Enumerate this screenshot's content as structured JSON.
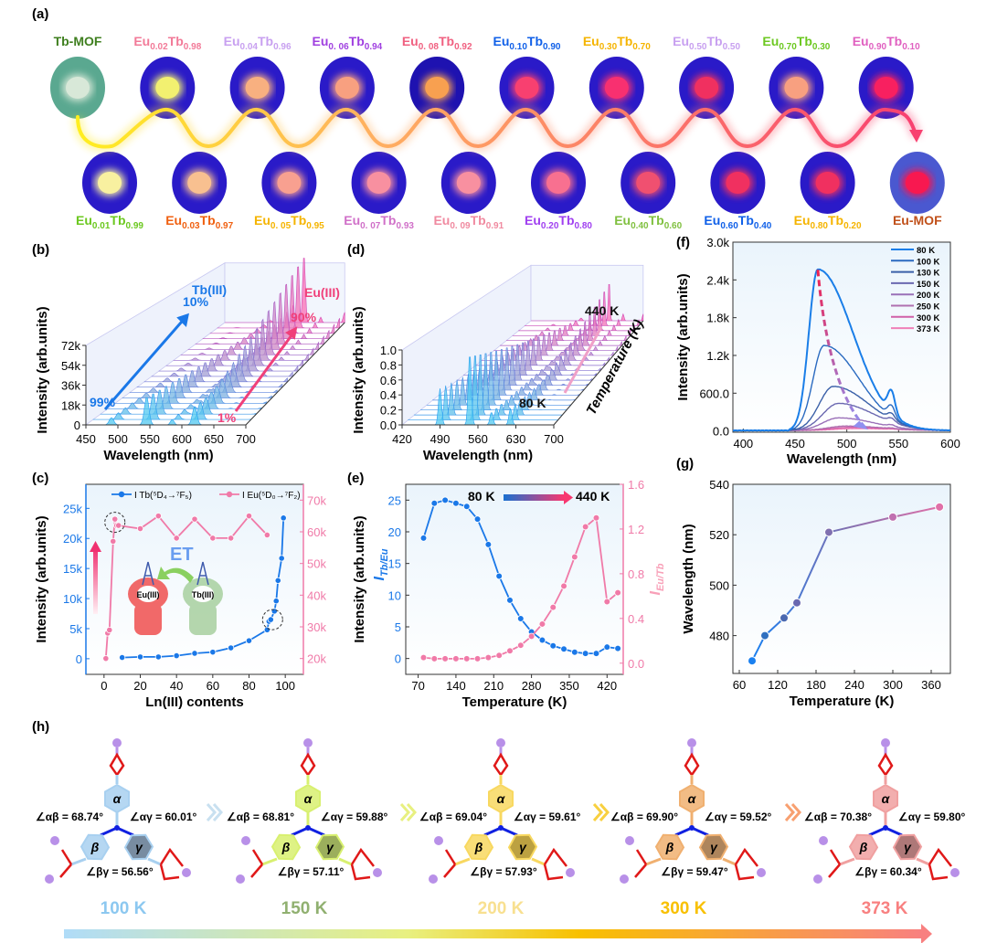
{
  "panel_labels": {
    "a": "(a)",
    "b": "(b)",
    "c": "(c)",
    "d": "(d)",
    "e": "(e)",
    "f": "(f)",
    "g": "(g)",
    "h": "(h)"
  },
  "panel_a": {
    "top": [
      {
        "parts": [
          "Tb-MOF"
        ],
        "color": "#3f7f1f",
        "photo_color": "#d8e8d8",
        "photo_bg": "#5aa890"
      },
      {
        "parts": [
          "Eu",
          "0.02",
          "Tb",
          "0.98"
        ],
        "color": "#f27a98",
        "photo_color": "#f2f070",
        "photo_bg": "#2a1ac8"
      },
      {
        "parts": [
          "Eu",
          "0.04",
          "Tb",
          "0.96"
        ],
        "color": "#c8a0f0",
        "photo_color": "#f8b080",
        "photo_bg": "#2a1ac8"
      },
      {
        "parts": [
          "Eu",
          "0. 06",
          "Tb",
          "0.94"
        ],
        "color": "#a040e0",
        "photo_color": "#f8a080",
        "photo_bg": "#2a1ac8"
      },
      {
        "parts": [
          "Eu",
          "0. 08",
          "Tb",
          "0.92"
        ],
        "color": "#f06080",
        "photo_color": "#f8a050",
        "photo_bg": "#1e12b0"
      },
      {
        "parts": [
          "Eu",
          "0.10",
          "Tb",
          "0.90"
        ],
        "color": "#1060e8",
        "photo_color": "#f84070",
        "photo_bg": "#2a1ac8"
      },
      {
        "parts": [
          "Eu",
          "0.30",
          "Tb",
          "0.70"
        ],
        "color": "#f5b400",
        "photo_color": "#f83070",
        "photo_bg": "#2a1ac8"
      },
      {
        "parts": [
          "Eu",
          "0.50",
          "Tb",
          "0.50"
        ],
        "color": "#c8a0f0",
        "photo_color": "#f03060",
        "photo_bg": "#2a1ac8"
      },
      {
        "parts": [
          "Eu",
          "0.70",
          "Tb",
          "0.30"
        ],
        "color": "#6cc820",
        "photo_color": "#f8a080",
        "photo_bg": "#2a1ac8"
      },
      {
        "parts": [
          "Eu",
          "0.90",
          "Tb",
          "0.10"
        ],
        "color": "#e060c0",
        "photo_color": "#f82060",
        "photo_bg": "#2a1ac8"
      }
    ],
    "bottom": [
      {
        "parts": [
          "Eu",
          "0.01",
          "Tb",
          "0.99"
        ],
        "color": "#6cc820",
        "photo_color": "#f8f0a0",
        "photo_bg": "#2a1ac8"
      },
      {
        "parts": [
          "Eu",
          "0.03",
          "Tb",
          "0.97"
        ],
        "color": "#f06010",
        "photo_color": "#f8c090",
        "photo_bg": "#2a1ac8"
      },
      {
        "parts": [
          "Eu",
          "0. 05",
          "Tb",
          "0.95"
        ],
        "color": "#f5b400",
        "photo_color": "#f8a090",
        "photo_bg": "#2a1ac8"
      },
      {
        "parts": [
          "Eu",
          "0. 07",
          "Tb",
          "0.93"
        ],
        "color": "#d070c8",
        "photo_color": "#f890a0",
        "photo_bg": "#2a1ac8"
      },
      {
        "parts": [
          "Eu",
          "0. 09",
          "Tb",
          "0.91"
        ],
        "color": "#f08aa0",
        "photo_color": "#f890a0",
        "photo_bg": "#2a1ac8"
      },
      {
        "parts": [
          "Eu",
          "0.20",
          "Tb",
          "0.80"
        ],
        "color": "#a040f0",
        "photo_color": "#f87090",
        "photo_bg": "#2a1ac8"
      },
      {
        "parts": [
          "Eu",
          "0.40",
          "Tb",
          "0.60"
        ],
        "color": "#80c040",
        "photo_color": "#f05070",
        "photo_bg": "#2a1ac8"
      },
      {
        "parts": [
          "Eu",
          "0.60",
          "Tb",
          "0.40"
        ],
        "color": "#1060e8",
        "photo_color": "#f03060",
        "photo_bg": "#2a1ac8"
      },
      {
        "parts": [
          "Eu",
          "0.80",
          "Tb",
          "0.20"
        ],
        "color": "#f5b400",
        "photo_color": "#f03060",
        "photo_bg": "#2a1ac8"
      },
      {
        "parts": [
          "Eu-MOF"
        ],
        "color": "#c0501a",
        "photo_color": "#f81850",
        "photo_bg": "#4a58d0"
      }
    ]
  },
  "chart_data": [
    {
      "panel": "(b)",
      "type": "waterfall",
      "xlabel": "Wavelength (nm)",
      "ylabel": "Intensity (arb.units)",
      "x_ticks": [
        450,
        500,
        550,
        600,
        650,
        700
      ],
      "y_ticks": [
        "0",
        "18k",
        "36k",
        "54k",
        "72k"
      ],
      "annotations": {
        "tb_label": "Tb(III)",
        "tb_end": "10%",
        "tb_start": "99%",
        "eu_label": "Eu(III)",
        "eu_end": "90%",
        "eu_start": "1%"
      },
      "colors": {
        "tb": "#1a78e8",
        "eu": "#f0407a"
      }
    },
    {
      "panel": "(c)",
      "type": "line",
      "xlabel": "Ln(III) contents",
      "ylabel": "Intensity (arb.units)",
      "xlim": [
        -10,
        110
      ],
      "ylim_left": [
        -2.6,
        29
      ],
      "ylim_right": [
        15,
        75
      ],
      "x_ticks": [
        0,
        20,
        40,
        60,
        80,
        100
      ],
      "y_ticks_left": [
        {
          "v": 0,
          "l": "0"
        },
        {
          "v": 5,
          "l": "5k"
        },
        {
          "v": 10,
          "l": "10k"
        },
        {
          "v": 15,
          "l": "15k"
        },
        {
          "v": 20,
          "l": "20k"
        },
        {
          "v": 25,
          "l": "25k"
        }
      ],
      "y_ticks_right": [
        {
          "v": 20,
          "l": "20k"
        },
        {
          "v": 30,
          "l": "30k"
        },
        {
          "v": 40,
          "l": "40k"
        },
        {
          "v": 50,
          "l": "50k"
        },
        {
          "v": 60,
          "l": "60k"
        },
        {
          "v": 70,
          "l": "70k"
        }
      ],
      "series": [
        {
          "name": "I Tb(⁵D₄→⁷F₅)",
          "axis": "left",
          "color": "#1a78e8",
          "x": [
            10,
            20,
            30,
            40,
            50,
            60,
            70,
            80,
            90,
            91,
            92,
            94,
            95,
            96,
            98,
            99
          ],
          "y": [
            0.2,
            0.3,
            0.3,
            0.5,
            0.9,
            1.1,
            1.8,
            3.0,
            4.8,
            6.2,
            6.5,
            7.9,
            9.6,
            13.0,
            16.7,
            23.4
          ]
        },
        {
          "name": "I Eu(⁵D₀→⁷F₂)",
          "axis": "right",
          "color": "#f07aa8",
          "x": [
            1,
            2,
            3,
            5,
            6,
            7,
            8,
            20,
            30,
            40,
            50,
            60,
            70,
            80,
            90
          ],
          "y": [
            20,
            28,
            29,
            57,
            64,
            62,
            62,
            61,
            65,
            58,
            64,
            58,
            58,
            65,
            59
          ]
        }
      ],
      "inset": {
        "et_label": "ET",
        "eu_label": "Eu(III)",
        "tb_label": "Tb(III)"
      }
    },
    {
      "panel": "(d)",
      "type": "waterfall",
      "xlabel": "Wavelength (nm)",
      "ylabel": "Intensity (arb.units)",
      "zlabel": "Temperature (K)",
      "x_ticks": [
        420,
        490,
        560,
        630,
        700
      ],
      "y_ticks": [
        "0.0",
        "0.2",
        "0.4",
        "0.6",
        "0.8",
        "1.0"
      ],
      "annotations": {
        "t_high": "440 K",
        "t_low": "80 K"
      }
    },
    {
      "panel": "(e)",
      "type": "line",
      "xlabel": "Temperature (K)",
      "ylabel": "Intensity (arb.units)",
      "ylabel_left_ratio": {
        "I": "I",
        "sub": "Tb/Eu"
      },
      "ylabel_right_ratio": {
        "I": "I",
        "sub": "Eu/Tb"
      },
      "xlim": [
        47,
        450
      ],
      "ylim_left": [
        -2.5,
        27.5
      ],
      "ylim_right": [
        -0.1,
        1.6
      ],
      "x_ticks": [
        70,
        140,
        210,
        280,
        350,
        420
      ],
      "y_ticks_left": [
        0,
        5,
        10,
        15,
        20,
        25
      ],
      "y_ticks_right": [
        "0.0",
        "0.4",
        "0.8",
        "1.2",
        "1.6"
      ],
      "annotation": {
        "from": "80 K",
        "to": "440 K"
      },
      "series": [
        {
          "name": "I Tb/Eu",
          "axis": "left",
          "color": "#1a78e8",
          "x": [
            80,
            100,
            120,
            140,
            160,
            180,
            200,
            220,
            240,
            260,
            280,
            300,
            320,
            340,
            360,
            380,
            400,
            420,
            440
          ],
          "y": [
            19,
            24.5,
            25,
            24.5,
            24,
            22,
            18,
            13,
            9.2,
            6.3,
            4.2,
            2.9,
            2.0,
            1.5,
            1.0,
            0.8,
            0.8,
            1.8,
            1.6
          ]
        },
        {
          "name": "I Eu/Tb",
          "axis": "right",
          "color": "#f07aa8",
          "x": [
            80,
            100,
            120,
            140,
            160,
            180,
            200,
            220,
            240,
            260,
            280,
            300,
            320,
            340,
            360,
            380,
            400,
            420,
            440
          ],
          "y": [
            0.05,
            0.04,
            0.04,
            0.04,
            0.04,
            0.04,
            0.05,
            0.07,
            0.11,
            0.16,
            0.24,
            0.35,
            0.5,
            0.69,
            0.95,
            1.22,
            1.3,
            0.55,
            0.63
          ]
        }
      ]
    },
    {
      "panel": "(f)",
      "type": "line",
      "xlabel": "Wavelength (nm)",
      "ylabel": "Intensity (arb.units)",
      "xlim": [
        390,
        600
      ],
      "ylim": [
        0,
        3000
      ],
      "x_ticks": [
        400,
        450,
        500,
        550,
        600
      ],
      "y_ticks": [
        {
          "v": 0,
          "l": "0.0"
        },
        {
          "v": 600,
          "l": "600.0"
        },
        {
          "v": 1200,
          "l": "1.2k"
        },
        {
          "v": 1800,
          "l": "1.8k"
        },
        {
          "v": 2400,
          "l": "2.4k"
        },
        {
          "v": 3000,
          "l": "3.0k"
        }
      ],
      "legend_position": "top-right",
      "series": [
        {
          "name": "80 K",
          "color": "#1a7ee8",
          "peak_nm": 472,
          "peak_intensity": 2560
        },
        {
          "name": "100 K",
          "color": "#2a6ac0",
          "peak_nm": 478,
          "peak_intensity": 1350
        },
        {
          "name": "130 K",
          "color": "#3a60a8",
          "peak_nm": 487,
          "peak_intensity": 700
        },
        {
          "name": "150 K",
          "color": "#6a68b0",
          "peak_nm": 492,
          "peak_intensity": 430
        },
        {
          "name": "200 K",
          "color": "#9a70b8",
          "peak_nm": 492,
          "peak_intensity": 200
        },
        {
          "name": "250 K",
          "color": "#b070b0",
          "peak_nm": 500,
          "peak_intensity": 70
        },
        {
          "name": "300 K",
          "color": "#d060a8",
          "peak_nm": 505,
          "peak_intensity": 50
        },
        {
          "name": "373 K",
          "color": "#f080b8",
          "peak_nm": 510,
          "peak_intensity": 30
        }
      ]
    },
    {
      "panel": "(g)",
      "type": "line",
      "xlabel": "Temperature (K)",
      "ylabel": "Wavelength (nm)",
      "xlim": [
        50,
        390
      ],
      "ylim": [
        465,
        540
      ],
      "x_ticks": [
        60,
        120,
        180,
        240,
        300,
        360
      ],
      "y_ticks": [
        480,
        500,
        520,
        540
      ],
      "x": [
        80,
        100,
        130,
        150,
        200,
        300,
        373
      ],
      "y": [
        470,
        480,
        487,
        493,
        521,
        527,
        531
      ]
    }
  ],
  "panel_h": {
    "molecules": [
      {
        "ab": "∠αβ = 68.74°",
        "ag": "∠αγ = 60.01°",
        "bg": "∠βγ = 56.56°",
        "color": "#a8d0f0",
        "dark": "#607890"
      },
      {
        "ab": "∠αβ = 68.81°",
        "ag": "∠αγ = 59.88°",
        "bg": "∠βγ = 57.11°",
        "color": "#d8f070",
        "dark": "#8aa040"
      },
      {
        "ab": "∠αβ = 69.04°",
        "ag": "∠αγ = 59.61°",
        "bg": "∠βγ = 57.93°",
        "color": "#f8d860",
        "dark": "#b09020"
      },
      {
        "ab": "∠αβ = 69.90°",
        "ag": "∠αγ = 59.52°",
        "bg": "∠βγ = 59.47°",
        "color": "#f0b070",
        "dark": "#a07040"
      },
      {
        "ab": "∠αβ = 70.38°",
        "ag": "∠αγ = 59.80°",
        "bg": "∠βγ = 60.34°",
        "color": "#f0a0a0",
        "dark": "#a06060"
      }
    ],
    "ring_labels": [
      "α",
      "β",
      "γ"
    ],
    "temperatures": [
      {
        "label": "100 K",
        "color": "#8cc8f0"
      },
      {
        "label": "150 K",
        "color": "#90b070"
      },
      {
        "label": "200 K",
        "color": "#f8e090"
      },
      {
        "label": "300 K",
        "color": "#f8c000"
      },
      {
        "label": "373 K",
        "color": "#f88080"
      }
    ]
  }
}
